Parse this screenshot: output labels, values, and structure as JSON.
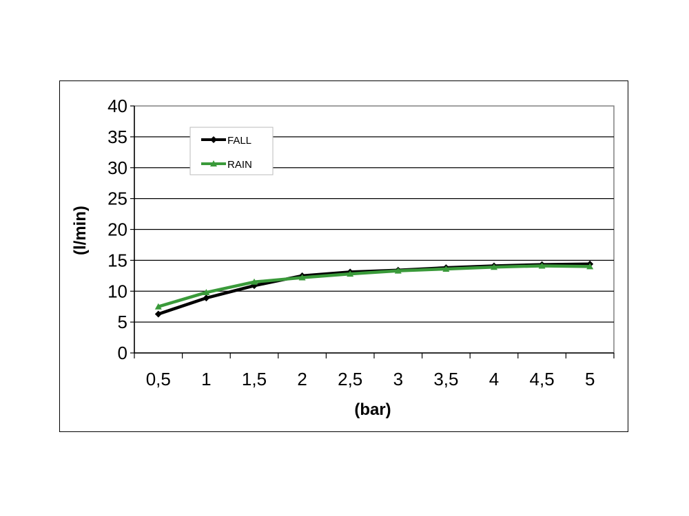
{
  "chart_data": {
    "type": "line",
    "categories": [
      "0,5",
      "1",
      "1,5",
      "2",
      "2,5",
      "3",
      "3,5",
      "4",
      "4,5",
      "5"
    ],
    "xlabel": "(bar)",
    "ylabel": "(l/min)",
    "ylim": [
      0,
      40
    ],
    "yticks": [
      "0",
      "5",
      "10",
      "15",
      "20",
      "25",
      "30",
      "35",
      "40"
    ],
    "grid": "horizontal",
    "legend_position": "top-left",
    "series": [
      {
        "name": "FALL",
        "color": "#000000",
        "marker": "diamond",
        "values": [
          6.3,
          8.9,
          10.9,
          12.5,
          13.1,
          13.4,
          13.8,
          14.1,
          14.3,
          14.4
        ]
      },
      {
        "name": "RAIN",
        "color": "#3a9a3a",
        "marker": "triangle",
        "values": [
          7.5,
          9.8,
          11.5,
          12.2,
          12.8,
          13.3,
          13.6,
          13.9,
          14.1,
          14.0
        ]
      }
    ]
  }
}
